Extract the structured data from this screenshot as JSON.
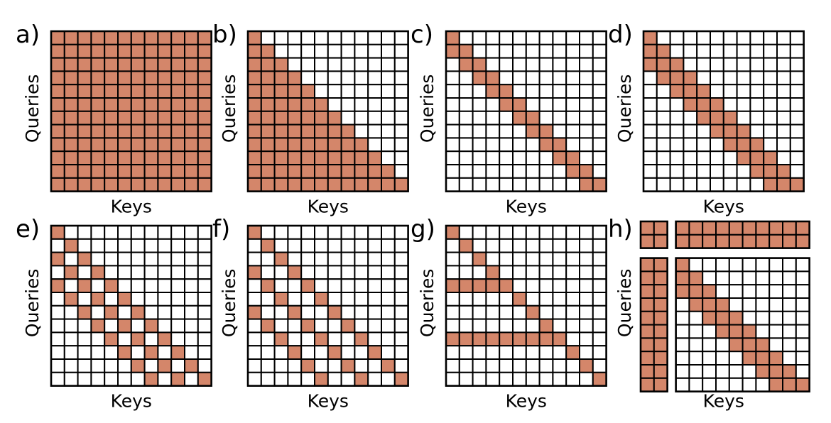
{
  "colors": {
    "filled": "#D4866A",
    "empty": "#ffffff",
    "line": "#000000"
  },
  "axis_labels": {
    "x": "Keys",
    "y": "Queries"
  },
  "panels": [
    {
      "label": "a)",
      "size": 12,
      "show_xlabel": true,
      "show_ylabel": true,
      "pattern": "full"
    },
    {
      "label": "b)",
      "size": 12,
      "show_xlabel": true,
      "show_ylabel": true,
      "pattern": "causal"
    },
    {
      "label": "c)",
      "size": 12,
      "show_xlabel": true,
      "show_ylabel": true,
      "pattern": "band",
      "band_lo": 0,
      "band_hi": 1
    },
    {
      "label": "d)",
      "size": 12,
      "show_xlabel": true,
      "show_ylabel": true,
      "pattern": "band",
      "band_lo": 0,
      "band_hi": 2
    },
    {
      "label": "e)",
      "size": 12,
      "show_xlabel": true,
      "show_ylabel": true,
      "pattern": "dilated",
      "dilation": 2,
      "band_hi": 4
    },
    {
      "label": "f)",
      "size": 12,
      "show_xlabel": true,
      "show_ylabel": true,
      "pattern": "dilated",
      "dilation": 3,
      "band_hi": 6
    },
    {
      "label": "g)",
      "size": 12,
      "show_xlabel": true,
      "show_ylabel": true,
      "pattern": "global_rows",
      "global_rows": [
        4,
        8
      ]
    },
    {
      "label": "h)",
      "size": 12,
      "show_xlabel": true,
      "show_ylabel": true,
      "pattern": "global_tokens",
      "global": 2,
      "band_lo": 0,
      "band_hi": 2
    }
  ]
}
